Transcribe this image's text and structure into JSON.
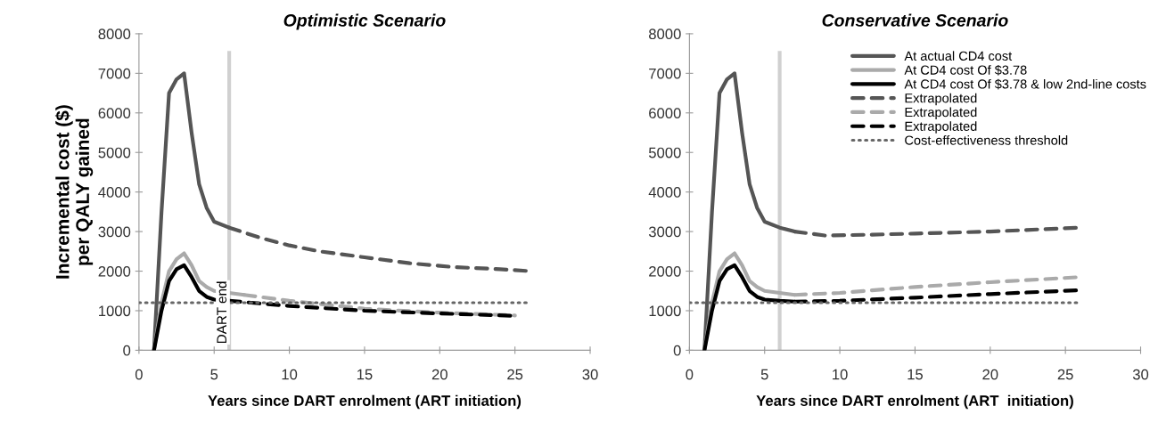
{
  "chart_data": [
    {
      "type": "line",
      "title": "Optimistic Scenario",
      "xlabel": "Years since DART enrolment (ART initiation)",
      "ylabel": "Incremental cost ($)\nper QALY gained",
      "xlim": [
        0,
        30
      ],
      "xticks": [
        0,
        5,
        10,
        15,
        20,
        25,
        30
      ],
      "ylim": [
        0,
        8000
      ],
      "yticks": [
        0,
        1000,
        2000,
        3000,
        4000,
        5000,
        6000,
        7000,
        8000
      ],
      "grid": false,
      "legend": false,
      "ref_lines": [
        {
          "axis": "x",
          "value": 6,
          "label": "DART end",
          "color": "#d0d0d0"
        }
      ],
      "series": [
        {
          "color": "#555555",
          "line_style": "solid",
          "x": [
            1,
            1.5,
            2,
            2.5,
            3,
            3.5,
            4,
            4.5,
            5,
            6
          ],
          "values": [
            0,
            3500,
            6500,
            6850,
            7000,
            5500,
            4200,
            3600,
            3250,
            3100
          ]
        },
        {
          "color": "#aaaaaa",
          "line_style": "solid",
          "x": [
            1,
            1.5,
            2,
            2.5,
            3,
            3.5,
            4,
            4.5,
            5,
            6,
            7
          ],
          "values": [
            0,
            1200,
            2000,
            2300,
            2450,
            2150,
            1750,
            1600,
            1500,
            1450,
            1400
          ]
        },
        {
          "color": "#000000",
          "line_style": "solid",
          "x": [
            1,
            1.5,
            2,
            2.5,
            3,
            3.5,
            4,
            4.5,
            5,
            6
          ],
          "values": [
            0,
            1000,
            1750,
            2050,
            2150,
            1850,
            1500,
            1350,
            1280,
            1250
          ]
        },
        {
          "color": "#555555",
          "line_style": "dashed",
          "x": [
            6,
            8,
            10,
            12,
            15,
            18,
            21,
            24,
            26
          ],
          "values": [
            3100,
            2850,
            2650,
            2500,
            2350,
            2200,
            2100,
            2050,
            2000
          ]
        },
        {
          "color": "#aaaaaa",
          "line_style": "dashed",
          "x": [
            7,
            10,
            15,
            20,
            25
          ],
          "values": [
            1400,
            1250,
            1050,
            950,
            880
          ]
        },
        {
          "color": "#000000",
          "line_style": "dashed",
          "x": [
            6,
            10,
            15,
            20,
            25
          ],
          "values": [
            1250,
            1120,
            1000,
            930,
            870
          ]
        },
        {
          "color": "#666666",
          "line_style": "dotted",
          "x": [
            0,
            26
          ],
          "values": [
            1200,
            1200
          ]
        }
      ]
    },
    {
      "type": "line",
      "title": "Conservative Scenario",
      "xlabel": "Years since DART enrolment (ART  initiation)",
      "xlim": [
        0,
        30
      ],
      "xticks": [
        0,
        5,
        10,
        15,
        20,
        25,
        30
      ],
      "ylim": [
        0,
        8000
      ],
      "yticks": [
        0,
        1000,
        2000,
        3000,
        4000,
        5000,
        6000,
        7000,
        8000
      ],
      "grid": false,
      "legend": "top right",
      "ref_lines": [
        {
          "axis": "x",
          "value": 6,
          "color": "#d0d0d0"
        }
      ],
      "series": [
        {
          "name": "At actual CD4 cost",
          "color": "#555555",
          "line_style": "solid",
          "x": [
            1,
            1.5,
            2,
            2.5,
            3,
            3.5,
            4,
            4.5,
            5,
            6,
            7
          ],
          "values": [
            0,
            3500,
            6500,
            6850,
            7000,
            5500,
            4200,
            3600,
            3250,
            3100,
            3000
          ]
        },
        {
          "name": "At CD4 cost Of $3.78",
          "color": "#aaaaaa",
          "line_style": "solid",
          "x": [
            1,
            1.5,
            2,
            2.5,
            3,
            3.5,
            4,
            4.5,
            5,
            6,
            7
          ],
          "values": [
            0,
            1200,
            2000,
            2300,
            2450,
            2150,
            1750,
            1600,
            1500,
            1450,
            1400
          ]
        },
        {
          "name": "At CD4 cost Of $3.78 & low 2nd-line costs",
          "color": "#000000",
          "line_style": "solid",
          "x": [
            1,
            1.5,
            2,
            2.5,
            3,
            3.5,
            4,
            4.5,
            5,
            6,
            7
          ],
          "values": [
            0,
            1000,
            1750,
            2050,
            2150,
            1850,
            1500,
            1350,
            1280,
            1250,
            1230
          ]
        },
        {
          "name": "Extrapolated",
          "color": "#555555",
          "line_style": "dashed",
          "x": [
            7,
            9,
            12,
            15,
            20,
            26
          ],
          "values": [
            3000,
            2900,
            2920,
            2950,
            3000,
            3100
          ]
        },
        {
          "name": "Extrapolated",
          "color": "#aaaaaa",
          "line_style": "dashed",
          "x": [
            7,
            10,
            15,
            20,
            26
          ],
          "values": [
            1400,
            1450,
            1600,
            1720,
            1850
          ]
        },
        {
          "name": "Extrapolated",
          "color": "#000000",
          "line_style": "dashed",
          "x": [
            7,
            10,
            15,
            20,
            26
          ],
          "values": [
            1230,
            1250,
            1330,
            1420,
            1520
          ]
        },
        {
          "name": "Cost-effectiveness threshold",
          "color": "#666666",
          "line_style": "dotted",
          "x": [
            0,
            26
          ],
          "values": [
            1200,
            1200
          ]
        }
      ]
    }
  ]
}
